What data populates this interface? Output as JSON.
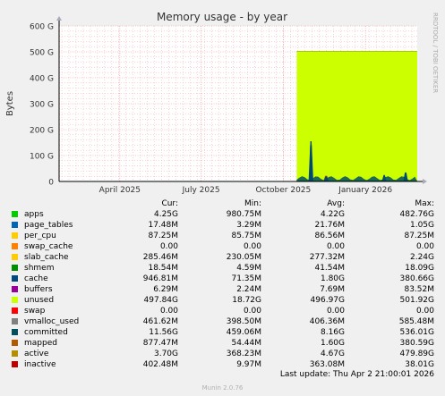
{
  "chart_data": {
    "type": "area",
    "title": "Memory usage - by year",
    "ylabel": "Bytes",
    "side_label": "RRDTOOL / TOBI OETIKER",
    "ylim": [
      0,
      600
    ],
    "y_unit": "G",
    "y_ticks": [
      {
        "value": 0,
        "label": "0"
      },
      {
        "value": 100,
        "label": "100 G"
      },
      {
        "value": 200,
        "label": "200 G"
      },
      {
        "value": 300,
        "label": "300 G"
      },
      {
        "value": 400,
        "label": "400 G"
      },
      {
        "value": 500,
        "label": "500 G"
      },
      {
        "value": 600,
        "label": "600 G"
      }
    ],
    "x_range": [
      "2025-01-23",
      "2026-02-28"
    ],
    "x_ticks": [
      {
        "date": "2025-04-01",
        "label": "April 2025"
      },
      {
        "date": "2025-07-01",
        "label": "July 2025"
      },
      {
        "date": "2025-10-01",
        "label": "October 2025"
      },
      {
        "date": "2026-01-01",
        "label": "January 2026"
      }
    ],
    "data_start": "2025-10-16",
    "unused_level": 502,
    "spikes": [
      {
        "date": "2025-11-01",
        "cache": 155,
        "committed": 140,
        "mapped": 15
      },
      {
        "date": "2025-11-18",
        "cache": 20,
        "committed": 18,
        "mapped": 22
      },
      {
        "date": "2026-01-22",
        "cache": 25,
        "committed": 22,
        "mapped": 8
      },
      {
        "date": "2026-02-15",
        "cache": 35,
        "committed": 33,
        "mapped": 10
      }
    ],
    "series": [
      {
        "name": "apps",
        "color": "#00cc00",
        "cur": "4.25G",
        "min": "980.75M",
        "avg": "4.22G",
        "max": "482.76G"
      },
      {
        "name": "page_tables",
        "color": "#0066b3",
        "cur": "17.48M",
        "min": "3.29M",
        "avg": "21.76M",
        "max": "1.05G"
      },
      {
        "name": "per_cpu",
        "color": "#ffcc00",
        "cur": "87.25M",
        "min": "85.75M",
        "avg": "86.56M",
        "max": "87.25M"
      },
      {
        "name": "swap_cache",
        "color": "#ff8000",
        "cur": "0.00",
        "min": "0.00",
        "avg": "0.00",
        "max": "0.00"
      },
      {
        "name": "slab_cache",
        "color": "#ffcc00",
        "cur": "285.46M",
        "min": "230.05M",
        "avg": "277.32M",
        "max": "2.24G"
      },
      {
        "name": "shmem",
        "color": "#008f00",
        "cur": "18.54M",
        "min": "4.59M",
        "avg": "41.54M",
        "max": "18.09G"
      },
      {
        "name": "cache",
        "color": "#00487d",
        "cur": "946.81M",
        "min": "71.35M",
        "avg": "1.80G",
        "max": "380.66G"
      },
      {
        "name": "buffers",
        "color": "#990099",
        "cur": "6.29M",
        "min": "2.24M",
        "avg": "7.69M",
        "max": "83.52M"
      },
      {
        "name": "unused",
        "color": "#ccff00",
        "cur": "497.84G",
        "min": "18.72G",
        "avg": "496.97G",
        "max": "501.92G"
      },
      {
        "name": "swap",
        "color": "#ff0000",
        "cur": "0.00",
        "min": "0.00",
        "avg": "0.00",
        "max": "0.00"
      },
      {
        "name": "vmalloc_used",
        "color": "#808080",
        "cur": "461.62M",
        "min": "398.50M",
        "avg": "406.36M",
        "max": "585.48M"
      },
      {
        "name": "committed",
        "color": "#004f5f",
        "cur": "11.56G",
        "min": "459.06M",
        "avg": "8.16G",
        "max": "536.01G"
      },
      {
        "name": "mapped",
        "color": "#b35a00",
        "cur": "877.47M",
        "min": "54.44M",
        "avg": "1.60G",
        "max": "380.59G"
      },
      {
        "name": "active",
        "color": "#b38f00",
        "cur": "3.70G",
        "min": "368.23M",
        "avg": "4.67G",
        "max": "479.89G"
      },
      {
        "name": "inactive",
        "color": "#bf0000",
        "cur": "402.48M",
        "min": "9.97M",
        "avg": "363.08M",
        "max": "38.01G"
      }
    ]
  },
  "legend_headers": {
    "cur": "Cur:",
    "min": "Min:",
    "avg": "Avg:",
    "max": "Max:"
  },
  "last_update": "Last update: Thu Apr  2 21:00:01 2026",
  "footer": "Munin 2.0.76"
}
